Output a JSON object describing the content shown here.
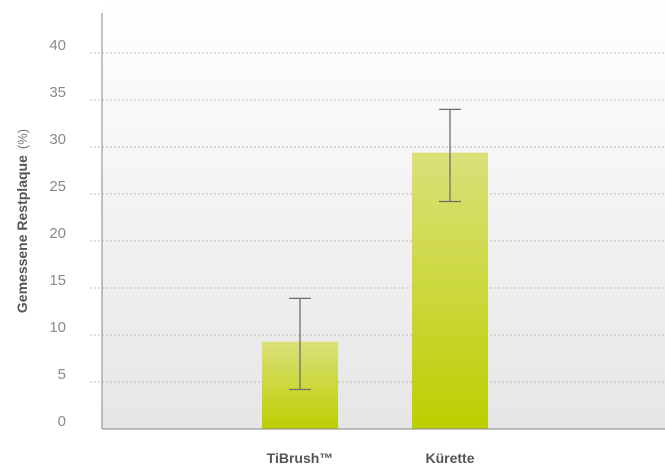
{
  "chart_data": {
    "type": "bar",
    "title": "",
    "xlabel": "",
    "ylabel": "Gemessene Restplaque",
    "ylabel_unit": "(%)",
    "categories": [
      "TiBrush™",
      "Kürette"
    ],
    "values": [
      9.3,
      29.4
    ],
    "error_low": [
      4.2,
      24.2
    ],
    "error_high": [
      13.9,
      34.0
    ],
    "ylim": [
      0,
      40
    ],
    "yticks": [
      0,
      5,
      10,
      15,
      20,
      25,
      30,
      35,
      40
    ],
    "grid": true,
    "legend": "none"
  },
  "colors": {
    "bar_top": "#dbe07a",
    "bar_bottom": "#bccf00",
    "grid": "#bdbdbd",
    "axis": "#888888",
    "error_bar": "#6e6e6e",
    "background_top": "#ffffff",
    "background_bottom": "#e6e6e6"
  }
}
